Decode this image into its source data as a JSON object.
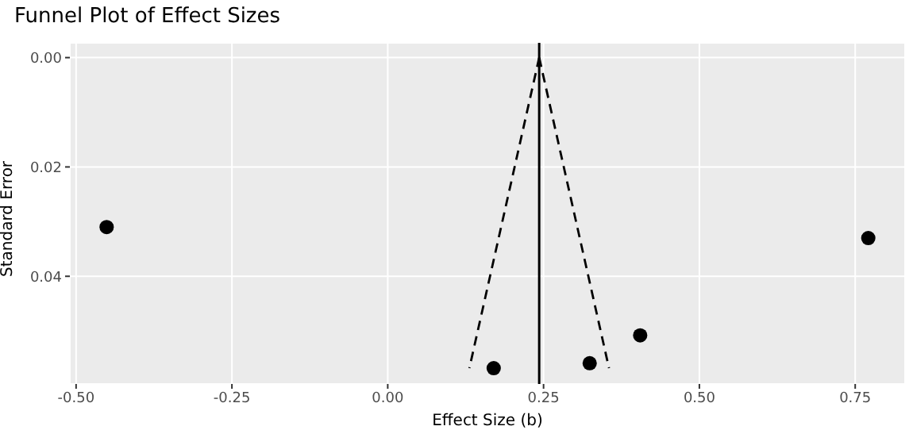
{
  "chart_data": {
    "type": "scatter",
    "title": "Funnel Plot of Effect Sizes",
    "xlabel": "Effect Size (b)",
    "ylabel": "Standard Error",
    "series": [
      {
        "marker": "circle",
        "color": "#000000",
        "x": [
          -0.451,
          0.17,
          0.324,
          0.405,
          0.771
        ],
        "values": [
          0.031,
          0.0568,
          0.0559,
          0.0508,
          0.033
        ]
      },
      {
        "type": "line",
        "color": "#000000",
        "line_style": "dashed",
        "x": [
          0.243,
          0.131
        ],
        "values": [
          0,
          0.0568
        ]
      },
      {
        "type": "line",
        "color": "#000000",
        "line_style": "dashed",
        "x": [
          0.243,
          0.355
        ],
        "values": [
          0,
          0.0568
        ]
      }
    ],
    "ref_lines": [
      {
        "axis": "x",
        "value": 0.243,
        "color": "#000000"
      }
    ],
    "xlim": [
      -0.51,
      0.83
    ],
    "xticks": [
      {
        "value": -0.5,
        "label": "-0.50"
      },
      {
        "value": -0.25,
        "label": "-0.25"
      },
      {
        "value": 0,
        "label": "0.00"
      },
      {
        "value": 0.25,
        "label": "0.25"
      },
      {
        "value": 0.5,
        "label": "0.50"
      },
      {
        "value": 0.75,
        "label": "0.75"
      }
    ],
    "ylim": [
      0.0597,
      -0.0027
    ],
    "yticks": [
      {
        "value": 0,
        "label": "0.00"
      },
      {
        "value": 0.02,
        "label": "0.02"
      },
      {
        "value": 0.04,
        "label": "0.04"
      }
    ],
    "grid": true
  }
}
